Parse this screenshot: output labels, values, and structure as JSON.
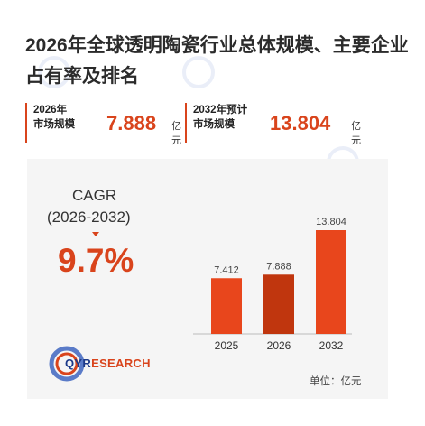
{
  "title": "2026年全球透明陶瓷行业总体规模、主要企业占有率及排名",
  "stats": [
    {
      "label_line1": "2026年",
      "label_line2": "市场规模",
      "value": "7.888",
      "unit": "亿元"
    },
    {
      "label_line1": "2032年预计",
      "label_line2": "市场规模",
      "value": "13.804",
      "unit": "亿元"
    }
  ],
  "cagr": {
    "title": "CAGR",
    "range": "(2026-2032)",
    "value": "9.7%"
  },
  "logo": {
    "prefix": "Q",
    "main": "YR",
    "suffix": "ESEARCH"
  },
  "unit_note": "单位：亿元",
  "colors": {
    "accent": "#d9441c",
    "bar_light": "#e8461c",
    "bar_dark": "#c0360e",
    "brand_blue": "#1d3a8a"
  },
  "chart_data": {
    "type": "bar",
    "categories": [
      "2025",
      "2026",
      "2032"
    ],
    "values": [
      7.412,
      7.888,
      13.804
    ],
    "value_labels": [
      "7.412",
      "7.888",
      "13.804"
    ],
    "title": "",
    "xlabel": "",
    "ylabel": "",
    "unit": "亿元"
  }
}
